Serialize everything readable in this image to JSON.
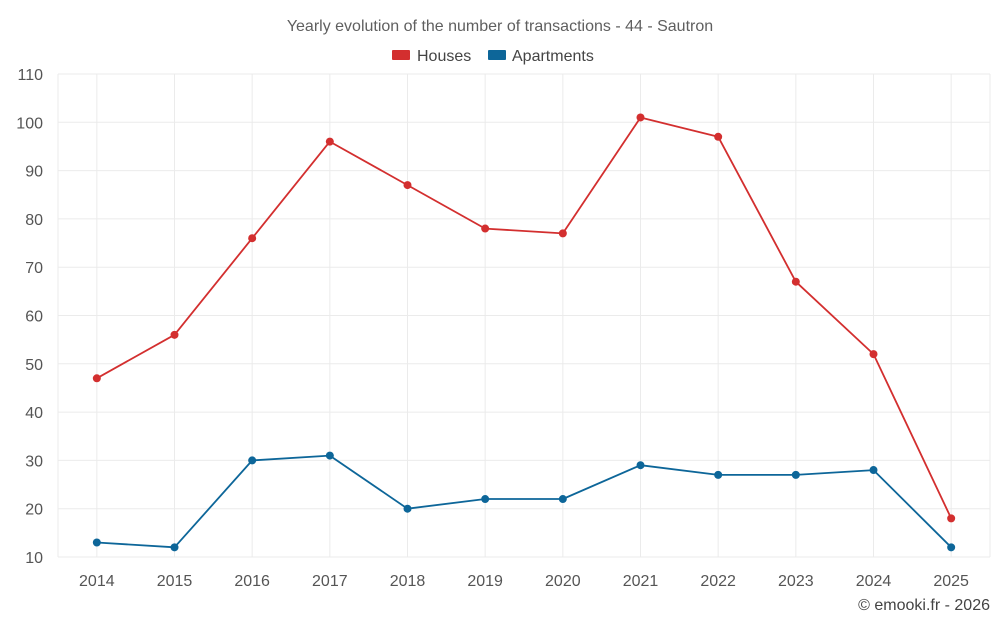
{
  "chart_data": {
    "type": "line",
    "title": "Yearly evolution of the number of transactions - 44 - Sautron",
    "xlabel": "",
    "ylabel": "",
    "categories": [
      "2014",
      "2015",
      "2016",
      "2017",
      "2018",
      "2019",
      "2020",
      "2021",
      "2022",
      "2023",
      "2024",
      "2025"
    ],
    "ylim": [
      10,
      110
    ],
    "yticks": [
      10,
      20,
      30,
      40,
      50,
      60,
      70,
      80,
      90,
      100,
      110
    ],
    "grid": true,
    "legend_position": "top-center",
    "series": [
      {
        "name": "Houses",
        "color": "#d32f2f",
        "values": [
          47,
          56,
          76,
          96,
          87,
          78,
          77,
          101,
          97,
          67,
          52,
          18
        ]
      },
      {
        "name": "Apartments",
        "color": "#0d6699",
        "values": [
          13,
          12,
          30,
          31,
          20,
          22,
          22,
          29,
          27,
          27,
          28,
          12
        ]
      }
    ]
  },
  "footer": {
    "credit": "© emooki.fr - 2026"
  }
}
